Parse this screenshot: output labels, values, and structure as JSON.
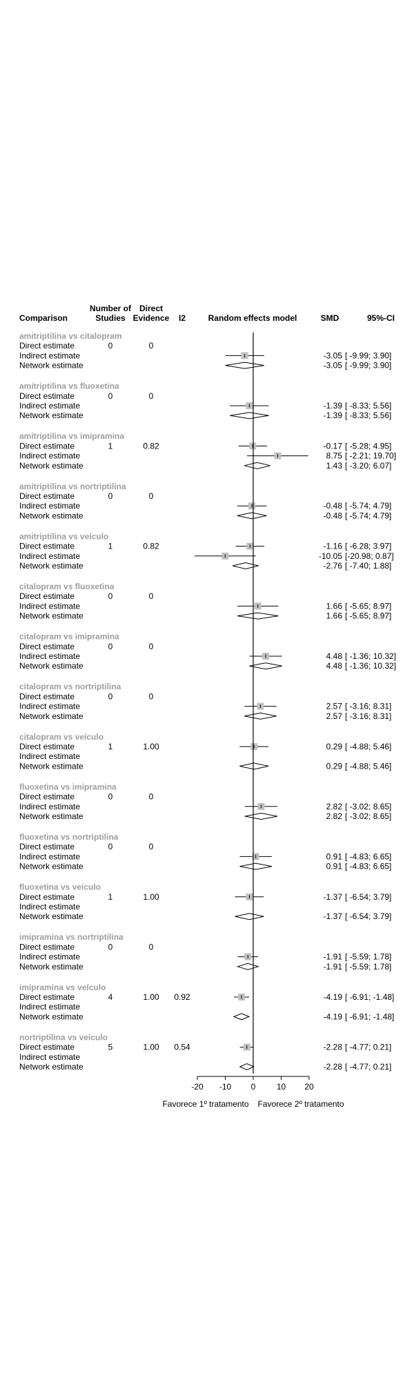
{
  "headers": {
    "comparison": "Comparison",
    "studies_line1": "Number of",
    "studies_line2": "Studies",
    "direct_line1": "Direct",
    "direct_line2": "Evidence",
    "i2": "I2",
    "model": "Random effects model",
    "smd": "SMD",
    "ci": "95%-CI"
  },
  "footer": {
    "favors_first": "Favorece 1º tratamento",
    "favors_second": "Favorece 2º tratamento"
  },
  "colors": {
    "group_title": "#9e9e9e",
    "square_fill": "#c0c0c0",
    "line": "#000000"
  },
  "chart_data": {
    "type": "forest",
    "axis": {
      "min": -20,
      "max": 20,
      "ticks": [
        "-20",
        "-10",
        "0",
        "10",
        "20"
      ],
      "ref_line": 0
    },
    "groups": [
      {
        "title": "amitriptilina vs citalopram",
        "rows": [
          {
            "label": "Direct estimate",
            "studies": "0",
            "direct": "0",
            "i2": ""
          },
          {
            "label": "Indirect estimate",
            "smd": "-3.05",
            "ci": "[ -9.99; 3.90]",
            "est": -3.05,
            "lo": -9.99,
            "hi": 3.9,
            "shape": "square"
          },
          {
            "label": "Network estimate",
            "smd": "-3.05",
            "ci": "[ -9.99; 3.90]",
            "est": -3.05,
            "lo": -9.99,
            "hi": 3.9,
            "shape": "diamond"
          }
        ]
      },
      {
        "title": "amitriptilina vs fluoxetina",
        "rows": [
          {
            "label": "Direct estimate",
            "studies": "0",
            "direct": "0",
            "i2": ""
          },
          {
            "label": "Indirect estimate",
            "smd": "-1.39",
            "ci": "[ -8.33; 5.56]",
            "est": -1.39,
            "lo": -8.33,
            "hi": 5.56,
            "shape": "square"
          },
          {
            "label": "Network estimate",
            "smd": "-1.39",
            "ci": "[ -8.33; 5.56]",
            "est": -1.39,
            "lo": -8.33,
            "hi": 5.56,
            "shape": "diamond"
          }
        ]
      },
      {
        "title": "amitriptilina vs imipramina",
        "rows": [
          {
            "label": "Direct estimate",
            "studies": "1",
            "direct": "0.82",
            "i2": "",
            "smd": "-0.17",
            "ci": "[ -5.28; 4.95]",
            "est": -0.17,
            "lo": -5.28,
            "hi": 4.95,
            "shape": "square"
          },
          {
            "label": "Indirect estimate",
            "smd": "8.75",
            "ci": "[ -2.21; 19.70]",
            "est": 8.75,
            "lo": -2.21,
            "hi": 19.7,
            "shape": "square"
          },
          {
            "label": "Network estimate",
            "smd": "1.43",
            "ci": "[ -3.20; 6.07]",
            "est": 1.43,
            "lo": -3.2,
            "hi": 6.07,
            "shape": "diamond"
          }
        ]
      },
      {
        "title": "amitriptilina vs nortriptilina",
        "rows": [
          {
            "label": "Direct estimate",
            "studies": "0",
            "direct": "0",
            "i2": ""
          },
          {
            "label": "Indirect estimate",
            "smd": "-0.48",
            "ci": "[ -5.74; 4.79]",
            "est": -0.48,
            "lo": -5.74,
            "hi": 4.79,
            "shape": "square"
          },
          {
            "label": "Network estimate",
            "smd": "-0.48",
            "ci": "[ -5.74; 4.79]",
            "est": -0.48,
            "lo": -5.74,
            "hi": 4.79,
            "shape": "diamond"
          }
        ]
      },
      {
        "title": "amitriptilina vs veículo",
        "rows": [
          {
            "label": "Direct estimate",
            "studies": "1",
            "direct": "0.82",
            "i2": "",
            "smd": "-1.16",
            "ci": "[ -6.28; 3.97]",
            "est": -1.16,
            "lo": -6.28,
            "hi": 3.97,
            "shape": "square"
          },
          {
            "label": "Indirect estimate",
            "smd": "-10.05",
            "ci": "[-20.98; 0.87]",
            "est": -10.05,
            "lo": -20.98,
            "hi": 0.87,
            "shape": "square"
          },
          {
            "label": "Network estimate",
            "smd": "-2.76",
            "ci": "[ -7.40; 1.88]",
            "est": -2.76,
            "lo": -7.4,
            "hi": 1.88,
            "shape": "diamond"
          }
        ]
      },
      {
        "title": "citalopram vs fluoxetina",
        "rows": [
          {
            "label": "Direct estimate",
            "studies": "0",
            "direct": "0",
            "i2": ""
          },
          {
            "label": "Indirect estimate",
            "smd": "1.66",
            "ci": "[ -5.65; 8.97]",
            "est": 1.66,
            "lo": -5.65,
            "hi": 8.97,
            "shape": "square"
          },
          {
            "label": "Network estimate",
            "smd": "1.66",
            "ci": "[ -5.65; 8.97]",
            "est": 1.66,
            "lo": -5.65,
            "hi": 8.97,
            "shape": "diamond"
          }
        ]
      },
      {
        "title": "citalopram vs imipramina",
        "rows": [
          {
            "label": "Direct estimate",
            "studies": "0",
            "direct": "0",
            "i2": ""
          },
          {
            "label": "Indirect estimate",
            "smd": "4.48",
            "ci": "[ -1.36; 10.32]",
            "est": 4.48,
            "lo": -1.36,
            "hi": 10.32,
            "shape": "square"
          },
          {
            "label": "Network estimate",
            "smd": "4.48",
            "ci": "[ -1.36; 10.32]",
            "est": 4.48,
            "lo": -1.36,
            "hi": 10.32,
            "shape": "diamond"
          }
        ]
      },
      {
        "title": "citalopram vs nortriptilina",
        "rows": [
          {
            "label": "Direct estimate",
            "studies": "0",
            "direct": "0",
            "i2": ""
          },
          {
            "label": "Indirect estimate",
            "smd": "2.57",
            "ci": "[ -3.16; 8.31]",
            "est": 2.57,
            "lo": -3.16,
            "hi": 8.31,
            "shape": "square"
          },
          {
            "label": "Network estimate",
            "smd": "2.57",
            "ci": "[ -3.16; 8.31]",
            "est": 2.57,
            "lo": -3.16,
            "hi": 8.31,
            "shape": "diamond"
          }
        ]
      },
      {
        "title": "citalopram vs veículo",
        "rows": [
          {
            "label": "Direct estimate",
            "studies": "1",
            "direct": "1.00",
            "i2": "",
            "smd": "0.29",
            "ci": "[ -4.88; 5.46]",
            "est": 0.29,
            "lo": -4.88,
            "hi": 5.46,
            "shape": "square"
          },
          {
            "label": "Indirect estimate"
          },
          {
            "label": "Network estimate",
            "smd": "0.29",
            "ci": "[ -4.88; 5.46]",
            "est": 0.29,
            "lo": -4.88,
            "hi": 5.46,
            "shape": "diamond"
          }
        ]
      },
      {
        "title": "fluoxetina vs imipramina",
        "rows": [
          {
            "label": "Direct estimate",
            "studies": "0",
            "direct": "0",
            "i2": ""
          },
          {
            "label": "Indirect estimate",
            "smd": "2.82",
            "ci": "[ -3.02; 8.65]",
            "est": 2.82,
            "lo": -3.02,
            "hi": 8.65,
            "shape": "square"
          },
          {
            "label": "Network estimate",
            "smd": "2.82",
            "ci": "[ -3.02; 8.65]",
            "est": 2.82,
            "lo": -3.02,
            "hi": 8.65,
            "shape": "diamond"
          }
        ]
      },
      {
        "title": "fluoxetina vs nortriptilina",
        "rows": [
          {
            "label": "Direct estimate",
            "studies": "0",
            "direct": "0",
            "i2": ""
          },
          {
            "label": "Indirect estimate",
            "smd": "0.91",
            "ci": "[ -4.83; 6.65]",
            "est": 0.91,
            "lo": -4.83,
            "hi": 6.65,
            "shape": "square"
          },
          {
            "label": "Network estimate",
            "smd": "0.91",
            "ci": "[ -4.83; 6.65]",
            "est": 0.91,
            "lo": -4.83,
            "hi": 6.65,
            "shape": "diamond"
          }
        ]
      },
      {
        "title": "fluoxetina vs veículo",
        "rows": [
          {
            "label": "Direct estimate",
            "studies": "1",
            "direct": "1.00",
            "i2": "",
            "smd": "-1.37",
            "ci": "[ -6.54; 3.79]",
            "est": -1.37,
            "lo": -6.54,
            "hi": 3.79,
            "shape": "square"
          },
          {
            "label": "Indirect estimate"
          },
          {
            "label": "Network estimate",
            "smd": "-1.37",
            "ci": "[ -6.54; 3.79]",
            "est": -1.37,
            "lo": -6.54,
            "hi": 3.79,
            "shape": "diamond"
          }
        ]
      },
      {
        "title": "imipramina vs nortriptilina",
        "rows": [
          {
            "label": "Direct estimate",
            "studies": "0",
            "direct": "0",
            "i2": ""
          },
          {
            "label": "Indirect estimate",
            "smd": "-1.91",
            "ci": "[ -5.59; 1.78]",
            "est": -1.91,
            "lo": -5.59,
            "hi": 1.78,
            "shape": "square"
          },
          {
            "label": "Network estimate",
            "smd": "-1.91",
            "ci": "[ -5.59; 1.78]",
            "est": -1.91,
            "lo": -5.59,
            "hi": 1.78,
            "shape": "diamond"
          }
        ]
      },
      {
        "title": "imipramina vs veículo",
        "rows": [
          {
            "label": "Direct estimate",
            "studies": "4",
            "direct": "1.00",
            "i2": "0.92",
            "smd": "-4.19",
            "ci": "[ -6.91; -1.48]",
            "est": -4.19,
            "lo": -6.91,
            "hi": -1.48,
            "shape": "square"
          },
          {
            "label": "Indirect estimate"
          },
          {
            "label": "Network estimate",
            "smd": "-4.19",
            "ci": "[ -6.91; -1.48]",
            "est": -4.19,
            "lo": -6.91,
            "hi": -1.48,
            "shape": "diamond"
          }
        ]
      },
      {
        "title": "nortriptilina vs veículo",
        "rows": [
          {
            "label": "Direct estimate",
            "studies": "5",
            "direct": "1.00",
            "i2": "0.54",
            "smd": "-2.28",
            "ci": "[ -4.77; 0.21]",
            "est": -2.28,
            "lo": -4.77,
            "hi": 0.21,
            "shape": "square"
          },
          {
            "label": "Indirect estimate"
          },
          {
            "label": "Network estimate",
            "smd": "-2.28",
            "ci": "[ -4.77; 0.21]",
            "est": -2.28,
            "lo": -4.77,
            "hi": 0.21,
            "shape": "diamond"
          }
        ]
      }
    ]
  }
}
